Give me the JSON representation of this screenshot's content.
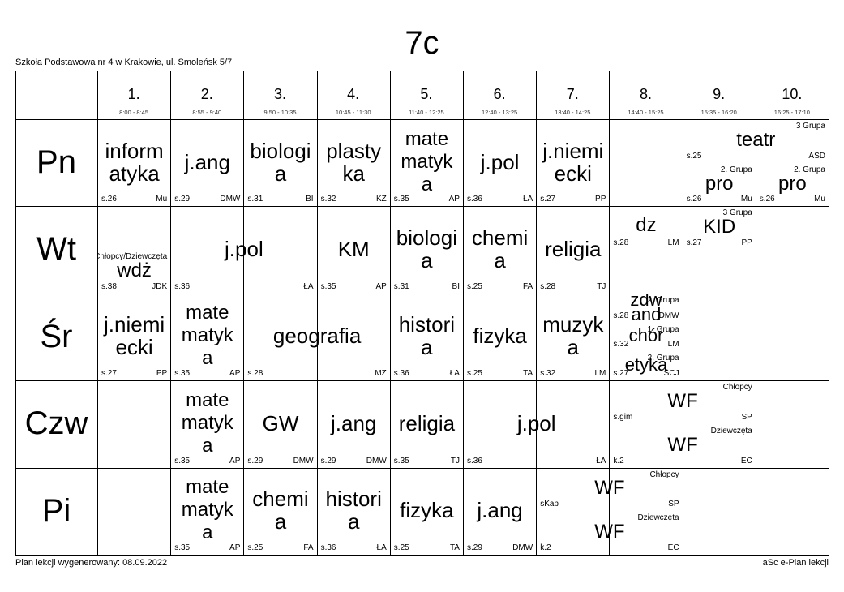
{
  "title": "7c",
  "school": "Szkoła Podstawowa nr 4 w Krakowie, ul. Smoleńsk 5/7",
  "footer_left": "Plan lekcji wygenerowany: 08.09.2022",
  "footer_right": "aSc e-Plan lekcji",
  "periods": [
    {
      "num": "1.",
      "time": "8:00 - 8:45"
    },
    {
      "num": "2.",
      "time": "8:55 - 9:40"
    },
    {
      "num": "3.",
      "time": "9:50 - 10:35"
    },
    {
      "num": "4.",
      "time": "10:45 - 11:30"
    },
    {
      "num": "5.",
      "time": "11:40 - 12:25"
    },
    {
      "num": "6.",
      "time": "12:40 - 13:25"
    },
    {
      "num": "7.",
      "time": "13:40 - 14:25"
    },
    {
      "num": "8.",
      "time": "14:40 - 15:25"
    },
    {
      "num": "9.",
      "time": "15:35 - 16:20"
    },
    {
      "num": "10.",
      "time": "16:25 - 17:10"
    }
  ],
  "days": [
    "Pn",
    "Wt",
    "Śr",
    "Czw",
    "Pi"
  ],
  "lessons": [
    {
      "day": 0,
      "p": 0,
      "span": 1,
      "lines": [
        "inform",
        "atyka"
      ],
      "room": "s.26",
      "teacher": "Mu"
    },
    {
      "day": 0,
      "p": 1,
      "span": 1,
      "lines": [
        "j.ang"
      ],
      "room": "s.29",
      "teacher": "DMW"
    },
    {
      "day": 0,
      "p": 2,
      "span": 1,
      "lines": [
        "biologi",
        "a"
      ],
      "room": "s.31",
      "teacher": "BI"
    },
    {
      "day": 0,
      "p": 3,
      "span": 1,
      "lines": [
        "plasty",
        "ka"
      ],
      "room": "s.32",
      "teacher": "KZ"
    },
    {
      "day": 0,
      "p": 4,
      "span": 1,
      "lines": [
        "mate",
        "matyk",
        "a"
      ],
      "room": "s.35",
      "teacher": "AP"
    },
    {
      "day": 0,
      "p": 5,
      "span": 1,
      "lines": [
        "j.pol"
      ],
      "room": "s.36",
      "teacher": "ŁA"
    },
    {
      "day": 0,
      "p": 6,
      "span": 1,
      "lines": [
        "j.niemi",
        "ecki"
      ],
      "room": "s.27",
      "teacher": "PP"
    },
    {
      "day": 0,
      "p": 8,
      "span": 2,
      "top": 0,
      "h": 0.5,
      "lines": [
        "teatr"
      ],
      "room": "s.25",
      "teacher": "ASD",
      "group": "3 Grupa"
    },
    {
      "day": 0,
      "p": 8,
      "span": 1,
      "top": 0.5,
      "h": 0.5,
      "lines": [
        "pro"
      ],
      "room": "s.26",
      "teacher": "Mu",
      "group": "2. Grupa"
    },
    {
      "day": 0,
      "p": 9,
      "span": 1,
      "top": 0.5,
      "h": 0.5,
      "lines": [
        "pro"
      ],
      "room": "s.26",
      "teacher": "Mu",
      "group": "2. Grupa"
    },
    {
      "day": 1,
      "p": 0,
      "span": 1,
      "top": 0.5,
      "h": 0.5,
      "lines": [
        "wdż"
      ],
      "room": "s.38",
      "teacher": "JDK",
      "group": "Chłopcy/Dziewczęta"
    },
    {
      "day": 1,
      "p": 1,
      "span": 2,
      "lines": [
        "j.pol"
      ],
      "room": "s.36",
      "teacher": "ŁA"
    },
    {
      "day": 1,
      "p": 3,
      "span": 1,
      "lines": [
        "KM"
      ],
      "room": "s.35",
      "teacher": "AP"
    },
    {
      "day": 1,
      "p": 4,
      "span": 1,
      "lines": [
        "biologi",
        "a"
      ],
      "room": "s.31",
      "teacher": "BI"
    },
    {
      "day": 1,
      "p": 5,
      "span": 1,
      "lines": [
        "chemi",
        "a"
      ],
      "room": "s.25",
      "teacher": "FA"
    },
    {
      "day": 1,
      "p": 6,
      "span": 1,
      "lines": [
        "religia"
      ],
      "room": "s.28",
      "teacher": "TJ"
    },
    {
      "day": 1,
      "p": 7,
      "span": 1,
      "top": 0,
      "h": 0.5,
      "lines": [
        "dz"
      ],
      "room": "s.28",
      "teacher": "LM"
    },
    {
      "day": 1,
      "p": 8,
      "span": 1,
      "top": 0,
      "h": 0.5,
      "lines": [
        "KID"
      ],
      "room": "s.27",
      "teacher": "PP",
      "group": "3 Grupa"
    },
    {
      "day": 2,
      "p": 0,
      "span": 1,
      "lines": [
        "j.niemi",
        "ecki"
      ],
      "room": "s.27",
      "teacher": "PP"
    },
    {
      "day": 2,
      "p": 1,
      "span": 1,
      "lines": [
        "mate",
        "matyk",
        "a"
      ],
      "room": "s.35",
      "teacher": "AP"
    },
    {
      "day": 2,
      "p": 2,
      "span": 2,
      "lines": [
        "geografia"
      ],
      "room": "s.28",
      "teacher": "MZ"
    },
    {
      "day": 2,
      "p": 4,
      "span": 1,
      "lines": [
        "histori",
        "a"
      ],
      "room": "s.36",
      "teacher": "ŁA"
    },
    {
      "day": 2,
      "p": 5,
      "span": 1,
      "lines": [
        "fizyka"
      ],
      "room": "s.25",
      "teacher": "TA"
    },
    {
      "day": 2,
      "p": 6,
      "span": 1,
      "lines": [
        "muzyk",
        "a"
      ],
      "room": "s.32",
      "teacher": "LM"
    },
    {
      "day": 2,
      "p": 7,
      "span": 1,
      "top": 0,
      "h": 0.3333,
      "lines": [
        "zdw",
        "and"
      ],
      "room": "s.28",
      "teacher": "DMW",
      "group": "2. Grupa"
    },
    {
      "day": 2,
      "p": 7,
      "span": 1,
      "top": 0.3333,
      "h": 0.3333,
      "lines": [
        "chór"
      ],
      "room": "s.32",
      "teacher": "LM",
      "group": "1. Grupa"
    },
    {
      "day": 2,
      "p": 7,
      "span": 1,
      "top": 0.6667,
      "h": 0.3333,
      "lines": [
        "etyka"
      ],
      "room": "s.27",
      "teacher": "SCJ",
      "group": "2. Grupa"
    },
    {
      "day": 3,
      "p": 1,
      "span": 1,
      "lines": [
        "mate",
        "matyk",
        "a"
      ],
      "room": "s.35",
      "teacher": "AP"
    },
    {
      "day": 3,
      "p": 2,
      "span": 1,
      "lines": [
        "GW"
      ],
      "room": "s.29",
      "teacher": "DMW"
    },
    {
      "day": 3,
      "p": 3,
      "span": 1,
      "lines": [
        "j.ang"
      ],
      "room": "s.29",
      "teacher": "DMW"
    },
    {
      "day": 3,
      "p": 4,
      "span": 1,
      "lines": [
        "religia"
      ],
      "room": "s.35",
      "teacher": "TJ"
    },
    {
      "day": 3,
      "p": 5,
      "span": 2,
      "lines": [
        "j.pol"
      ],
      "room": "s.36",
      "teacher": "ŁA"
    },
    {
      "day": 3,
      "p": 7,
      "span": 2,
      "top": 0,
      "h": 0.5,
      "lines": [
        "WF"
      ],
      "room": "s.gim",
      "teacher": "SP",
      "group": "Chłopcy"
    },
    {
      "day": 3,
      "p": 7,
      "span": 2,
      "top": 0.5,
      "h": 0.5,
      "lines": [
        "WF"
      ],
      "room": "k.2",
      "teacher": "EC",
      "group": "Dziewczęta"
    },
    {
      "day": 4,
      "p": 1,
      "span": 1,
      "lines": [
        "mate",
        "matyk",
        "a"
      ],
      "room": "s.35",
      "teacher": "AP"
    },
    {
      "day": 4,
      "p": 2,
      "span": 1,
      "lines": [
        "chemi",
        "a"
      ],
      "room": "s.25",
      "teacher": "FA"
    },
    {
      "day": 4,
      "p": 3,
      "span": 1,
      "lines": [
        "histori",
        "a"
      ],
      "room": "s.36",
      "teacher": "ŁA"
    },
    {
      "day": 4,
      "p": 4,
      "span": 1,
      "lines": [
        "fizyka"
      ],
      "room": "s.25",
      "teacher": "TA"
    },
    {
      "day": 4,
      "p": 5,
      "span": 1,
      "lines": [
        "j.ang"
      ],
      "room": "s.29",
      "teacher": "DMW"
    },
    {
      "day": 4,
      "p": 6,
      "span": 2,
      "top": 0,
      "h": 0.5,
      "lines": [
        "WF"
      ],
      "room": "sKap",
      "teacher": "SP",
      "group": "Chłopcy"
    },
    {
      "day": 4,
      "p": 6,
      "span": 2,
      "top": 0.5,
      "h": 0.5,
      "lines": [
        "WF"
      ],
      "room": "k.2",
      "teacher": "EC",
      "group": "Dziewczęta"
    }
  ]
}
